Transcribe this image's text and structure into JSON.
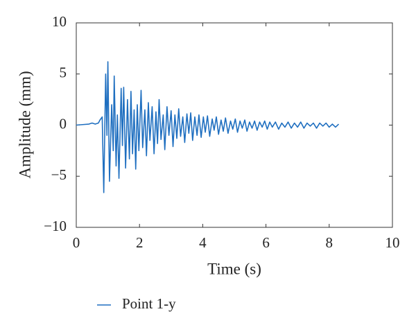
{
  "chart_data": {
    "type": "line",
    "xlabel": "Time (s)",
    "ylabel": "Amplitude (mm)",
    "xlim": [
      0,
      10
    ],
    "xticks": [
      0,
      2,
      4,
      6,
      8,
      10
    ],
    "ylim": [
      -10,
      10
    ],
    "yticks": [
      {
        "value": -10,
        "label": "−10"
      },
      {
        "value": -5,
        "label": "−5"
      },
      0,
      5,
      10
    ],
    "legend": "bottom-left",
    "x": [
      0,
      0.2,
      0.4,
      0.5,
      0.6,
      0.7,
      0.75,
      0.82,
      0.87,
      0.93,
      0.97,
      1.0,
      1.05,
      1.12,
      1.17,
      1.2,
      1.26,
      1.3,
      1.35,
      1.42,
      1.46,
      1.5,
      1.56,
      1.62,
      1.68,
      1.73,
      1.78,
      1.83,
      1.88,
      1.93,
      1.98,
      2.05,
      2.1,
      2.17,
      2.22,
      2.28,
      2.33,
      2.4,
      2.46,
      2.52,
      2.57,
      2.62,
      2.68,
      2.75,
      2.8,
      2.87,
      2.93,
      3.0,
      3.06,
      3.12,
      3.18,
      3.24,
      3.3,
      3.37,
      3.43,
      3.5,
      3.56,
      3.62,
      3.68,
      3.75,
      3.82,
      3.88,
      3.95,
      4.02,
      4.08,
      4.15,
      4.22,
      4.3,
      4.36,
      4.43,
      4.5,
      4.58,
      4.65,
      4.72,
      4.8,
      4.88,
      4.95,
      5.03,
      5.1,
      5.18,
      5.25,
      5.33,
      5.4,
      5.48,
      5.56,
      5.64,
      5.72,
      5.8,
      5.88,
      5.96,
      6.04,
      6.12,
      6.2,
      6.3,
      6.4,
      6.5,
      6.6,
      6.7,
      6.8,
      6.9,
      7.0,
      7.1,
      7.2,
      7.3,
      7.4,
      7.5,
      7.6,
      7.7,
      7.8,
      7.9,
      8.0,
      8.1,
      8.2,
      8.3
    ],
    "series": [
      {
        "name": "Point 1-y",
        "color": "#1f6fc0",
        "values": [
          0,
          0.05,
          0.1,
          0.2,
          0.1,
          0.2,
          0.5,
          0.8,
          -6.6,
          5.0,
          -1,
          6.2,
          -5.5,
          2.0,
          -2.5,
          4.8,
          -4.0,
          1.0,
          -5.2,
          3.6,
          -2.0,
          3.7,
          -4.2,
          2.5,
          -3.3,
          3.3,
          -2.8,
          1.5,
          -4.3,
          2.0,
          -2.5,
          3.4,
          -2.2,
          1.5,
          -3.0,
          2.2,
          -1.5,
          1.8,
          -2.8,
          1.3,
          -1.8,
          2.5,
          -1.4,
          1.0,
          -2.4,
          1.8,
          -1.0,
          1.4,
          -2.1,
          1.0,
          -1.3,
          1.6,
          -1.1,
          0.8,
          -1.7,
          1.1,
          -0.8,
          1.2,
          -1.5,
          0.8,
          -1.0,
          1.0,
          -1.2,
          0.8,
          -0.7,
          0.9,
          -1.1,
          0.6,
          -0.5,
          0.8,
          -0.9,
          0.5,
          -0.6,
          0.7,
          -0.8,
          0.4,
          -0.4,
          0.6,
          -0.7,
          0.4,
          -0.3,
          0.5,
          -0.6,
          0.3,
          -0.3,
          0.4,
          -0.5,
          0.3,
          -0.2,
          0.4,
          -0.4,
          0.3,
          -0.2,
          0.3,
          -0.4,
          0.2,
          -0.2,
          0.3,
          -0.3,
          0.2,
          -0.2,
          0.3,
          -0.3,
          0.2,
          -0.1,
          0.2,
          -0.3,
          0.2,
          -0.1,
          0.2,
          -0.2,
          0.1,
          -0.2,
          0.1
        ]
      }
    ]
  }
}
